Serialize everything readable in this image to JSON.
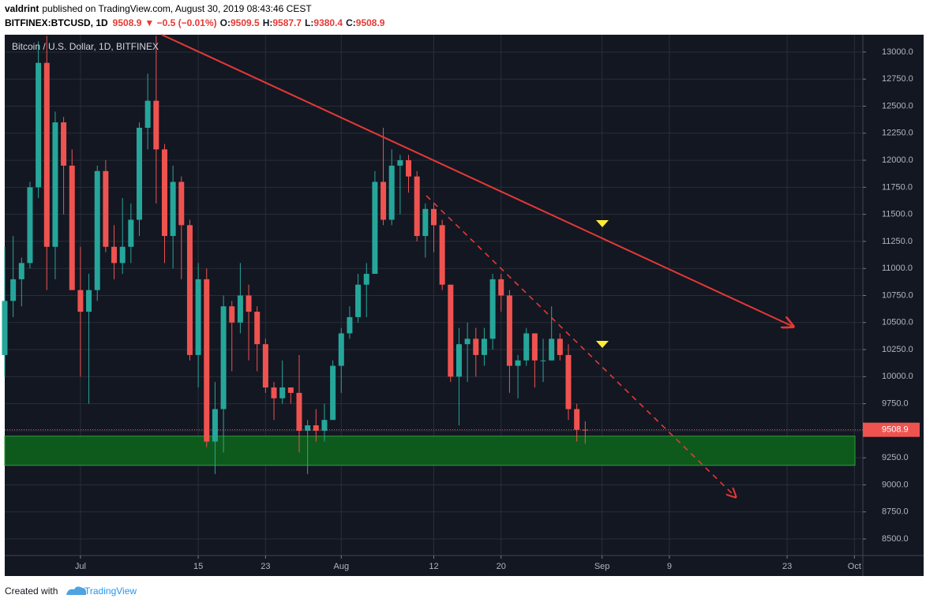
{
  "header": {
    "author": "valdrint",
    "published": "published on TradingView.com, August 30, 2019 08:43:46 CEST",
    "symbol": "BITFINEX:BTCUSD, 1D",
    "last": "9508.9",
    "change": "▼ −0.5 (−0.01%)",
    "ohlc": [
      {
        "label": "O:",
        "value": "9509.5"
      },
      {
        "label": "H:",
        "value": "9587.7"
      },
      {
        "label": "L:",
        "value": "9380.4"
      },
      {
        "label": "C:",
        "value": "9508.9"
      }
    ]
  },
  "footer": {
    "created": "Created with",
    "brand": "TradingView"
  },
  "chart_data": {
    "type": "candlestick",
    "title": "Bitcoin / U.S. Dollar, 1D, BITFINEX",
    "up_color": "#26a69a",
    "down_color": "#ef5350",
    "grid": true,
    "support_zone": [
      9180,
      9450
    ],
    "zone_color": "#0e5a1c",
    "x": [
      "2019-06-22",
      "2019-06-23",
      "2019-06-24",
      "2019-06-25",
      "2019-06-26",
      "2019-06-27",
      "2019-06-28",
      "2019-06-29",
      "2019-06-30",
      "2019-07-01",
      "2019-07-02",
      "2019-07-03",
      "2019-07-04",
      "2019-07-05",
      "2019-07-06",
      "2019-07-07",
      "2019-07-08",
      "2019-07-09",
      "2019-07-10",
      "2019-07-11",
      "2019-07-12",
      "2019-07-13",
      "2019-07-14",
      "2019-07-15",
      "2019-07-16",
      "2019-07-17",
      "2019-07-18",
      "2019-07-19",
      "2019-07-20",
      "2019-07-21",
      "2019-07-22",
      "2019-07-23",
      "2019-07-24",
      "2019-07-25",
      "2019-07-26",
      "2019-07-27",
      "2019-07-28",
      "2019-07-29",
      "2019-07-30",
      "2019-07-31",
      "2019-08-01",
      "2019-08-02",
      "2019-08-03",
      "2019-08-04",
      "2019-08-05",
      "2019-08-06",
      "2019-08-07",
      "2019-08-08",
      "2019-08-09",
      "2019-08-10",
      "2019-08-11",
      "2019-08-12",
      "2019-08-13",
      "2019-08-14",
      "2019-08-15",
      "2019-08-16",
      "2019-08-17",
      "2019-08-18",
      "2019-08-19",
      "2019-08-20",
      "2019-08-21",
      "2019-08-22",
      "2019-08-23",
      "2019-08-24",
      "2019-08-25",
      "2019-08-26",
      "2019-08-27",
      "2019-08-28",
      "2019-08-29",
      "2019-08-30"
    ],
    "open": [
      10200,
      10700,
      10900,
      11050,
      11750,
      12900,
      11200,
      12350,
      11950,
      10800,
      10600,
      10800,
      11900,
      11200,
      11050,
      11200,
      11450,
      12300,
      12550,
      12100,
      11300,
      11800,
      11400,
      10200,
      10900,
      9400,
      9700,
      10650,
      10500,
      10750,
      10600,
      10300,
      9900,
      9800,
      9900,
      9850,
      9500,
      9550,
      9500,
      9600,
      10100,
      10400,
      10550,
      10850,
      10950,
      11800,
      11450,
      11950,
      12000,
      11850,
      11300,
      11550,
      11400,
      10850,
      10000,
      10300,
      10350,
      10200,
      10350,
      10900,
      10750,
      10100,
      10150,
      10400,
      10150,
      10150,
      10350,
      10200,
      9700,
      9509.5
    ],
    "high": [
      11200,
      11300,
      11100,
      11800,
      13100,
      13150,
      12450,
      12400,
      12100,
      11200,
      10950,
      11950,
      12000,
      11400,
      11650,
      11600,
      12350,
      12800,
      13150,
      12150,
      11950,
      11850,
      11450,
      11050,
      11000,
      9950,
      10750,
      10700,
      11050,
      10850,
      10650,
      10350,
      9950,
      10150,
      9900,
      10200,
      9600,
      9700,
      9750,
      10150,
      10450,
      10650,
      10950,
      11050,
      11900,
      12300,
      12100,
      12050,
      12050,
      11900,
      11600,
      11600,
      11450,
      10850,
      10450,
      10500,
      10450,
      10450,
      10950,
      10950,
      10800,
      10200,
      10450,
      10400,
      10350,
      10650,
      10400,
      10300,
      9750,
      9587.7
    ],
    "low": [
      10000,
      10550,
      10650,
      11000,
      11650,
      10800,
      10900,
      11500,
      10800,
      10000,
      9750,
      10700,
      11150,
      10900,
      10950,
      11050,
      11300,
      12100,
      11600,
      11050,
      11000,
      10900,
      10150,
      9900,
      9350,
      9100,
      9300,
      10050,
      10400,
      10150,
      10050,
      9850,
      9600,
      9750,
      9750,
      9300,
      9100,
      9400,
      9400,
      9600,
      9850,
      10350,
      10500,
      10550,
      10950,
      11400,
      11400,
      11500,
      11700,
      11250,
      11100,
      11150,
      10800,
      9950,
      9550,
      9950,
      10000,
      10100,
      10250,
      10600,
      9850,
      9800,
      10100,
      9900,
      9950,
      10150,
      10150,
      9600,
      9400,
      9380.4
    ],
    "close": [
      10700,
      10900,
      11050,
      11750,
      12900,
      11200,
      12350,
      11950,
      10800,
      10600,
      10800,
      11900,
      11200,
      11050,
      11200,
      11450,
      12300,
      12550,
      12100,
      11300,
      11800,
      11400,
      10200,
      10900,
      9400,
      9700,
      10650,
      10500,
      10750,
      10600,
      10300,
      9900,
      9800,
      9900,
      9850,
      9500,
      9550,
      9500,
      9600,
      10100,
      10400,
      10550,
      10850,
      10950,
      11800,
      11450,
      11950,
      12000,
      11850,
      11300,
      11550,
      11400,
      10850,
      10000,
      10300,
      10350,
      10200,
      10350,
      10900,
      10750,
      10100,
      10150,
      10400,
      10150,
      10150,
      10350,
      10200,
      9700,
      9509.5,
      9508.9
    ],
    "xlim": [
      "2019-06-22",
      "2019-10-02"
    ],
    "xticks": [
      {
        "value": "2019-07-01",
        "label": "Jul"
      },
      {
        "value": "2019-07-15",
        "label": "15"
      },
      {
        "value": "2019-07-23",
        "label": "23"
      },
      {
        "value": "2019-08-01",
        "label": "Aug"
      },
      {
        "value": "2019-08-12",
        "label": "12"
      },
      {
        "value": "2019-08-20",
        "label": "20"
      },
      {
        "value": "2019-09-01",
        "label": "Sep"
      },
      {
        "value": "2019-09-09",
        "label": "9"
      },
      {
        "value": "2019-09-23",
        "label": "23"
      },
      {
        "value": "2019-10-01",
        "label": "Oct"
      }
    ],
    "ylim": [
      8347,
      13160
    ],
    "yticks": [
      {
        "value": 8500,
        "label": "8500.0"
      },
      {
        "value": 8750,
        "label": "8750.0"
      },
      {
        "value": 9000,
        "label": "9000.0"
      },
      {
        "value": 9250,
        "label": "9250.0"
      },
      {
        "value": 9500,
        "label": "9500.0"
      },
      {
        "value": 9750,
        "label": "9750.0"
      },
      {
        "value": 10000,
        "label": "10000.0"
      },
      {
        "value": 10250,
        "label": "10250.0"
      },
      {
        "value": 10500,
        "label": "10500.0"
      },
      {
        "value": 10750,
        "label": "10750.0"
      },
      {
        "value": 11000,
        "label": "11000.0"
      },
      {
        "value": 11250,
        "label": "11250.0"
      },
      {
        "value": 11500,
        "label": "11500.0"
      },
      {
        "value": 11750,
        "label": "11750.0"
      },
      {
        "value": 12000,
        "label": "12000.0"
      },
      {
        "value": 12250,
        "label": "12250.0"
      },
      {
        "value": 12500,
        "label": "12500.0"
      },
      {
        "value": 12750,
        "label": "12750.0"
      },
      {
        "value": 13000,
        "label": "13000.0"
      }
    ]
  }
}
